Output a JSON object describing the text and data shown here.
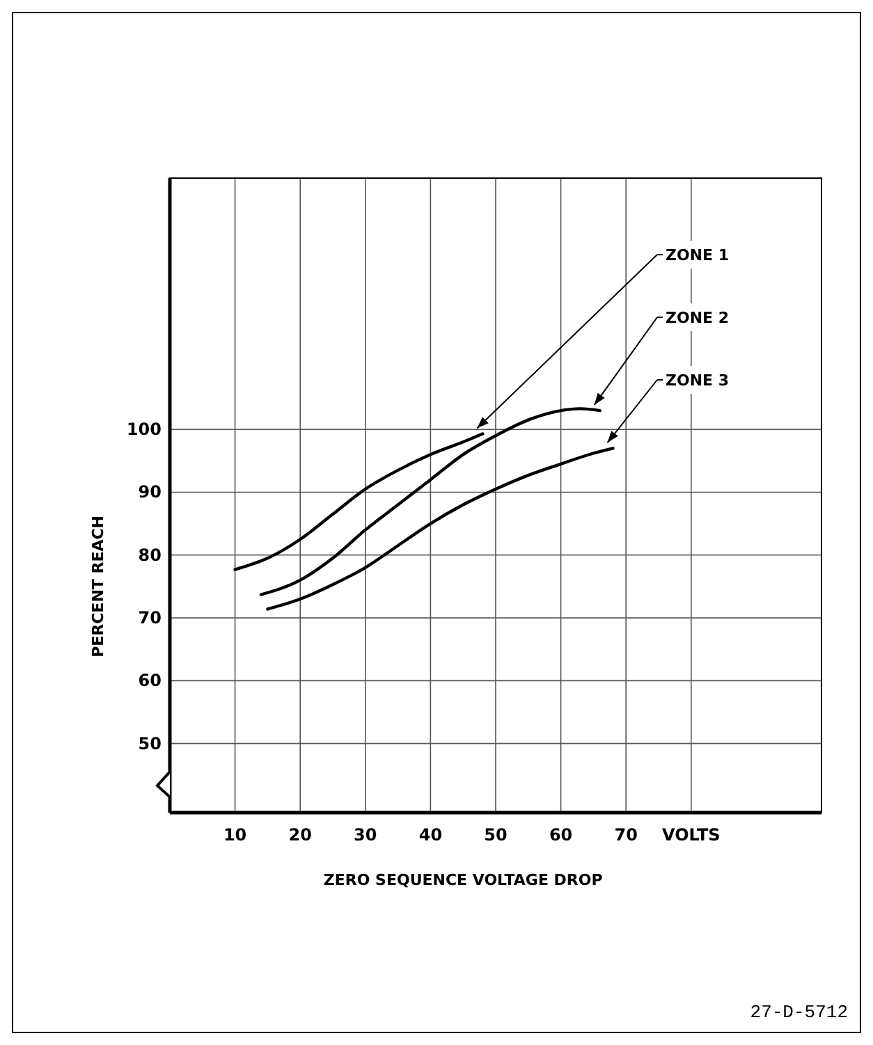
{
  "chart_data": {
    "type": "line",
    "xlabel": "ZERO SEQUENCE VOLTAGE DROP",
    "ylabel": "PERCENT REACH",
    "xlim": [
      0,
      100
    ],
    "ylim": [
      39,
      140
    ],
    "xticks": [
      10,
      20,
      30,
      40,
      50,
      60,
      70,
      {
        "value": 80,
        "label": "VOLTS"
      }
    ],
    "yticks": [
      50,
      60,
      70,
      80,
      90,
      100
    ],
    "grid": true,
    "legend": "top right",
    "marker": "none",
    "line_style": "solid",
    "annotations": [
      "27-D-5712"
    ],
    "series": [
      {
        "name": "ZONE 1",
        "color": "#000000",
        "x": [
          10,
          15,
          20,
          25,
          30,
          35,
          40,
          45,
          48
        ],
        "values": [
          77.7,
          79.5,
          82.5,
          86.5,
          90.5,
          93.5,
          96,
          98,
          99.3
        ]
      },
      {
        "name": "ZONE 2",
        "color": "#000000",
        "x": [
          14,
          20,
          25,
          30,
          35,
          40,
          45,
          50,
          55,
          60,
          63,
          66
        ],
        "values": [
          73.7,
          76,
          79.5,
          84,
          88,
          92,
          96,
          99,
          101.5,
          103,
          103.3,
          103
        ]
      },
      {
        "name": "ZONE 3",
        "color": "#000000",
        "x": [
          15,
          20,
          25,
          30,
          35,
          40,
          45,
          50,
          55,
          60,
          65,
          68
        ],
        "values": [
          71.4,
          73,
          75.3,
          78,
          81.5,
          85,
          88,
          90.5,
          92.7,
          94.5,
          96.2,
          97
        ]
      }
    ]
  }
}
